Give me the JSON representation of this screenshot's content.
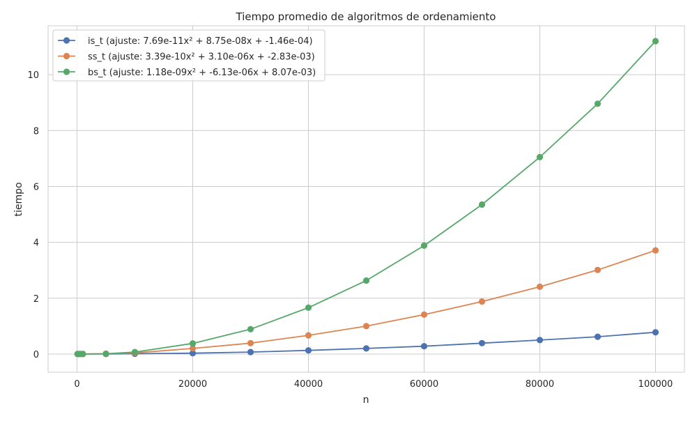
{
  "chart_data": {
    "type": "line",
    "title": "Tiempo promedio de algoritmos de ordenamiento",
    "xlabel": "n",
    "ylabel": "tiempo",
    "xlim": [
      -5000,
      105000
    ],
    "ylim": [
      -0.65,
      11.75
    ],
    "x_ticks": [
      0,
      20000,
      40000,
      60000,
      80000,
      100000
    ],
    "y_ticks": [
      0,
      2,
      4,
      6,
      8,
      10
    ],
    "grid": true,
    "legend_position": "top-left",
    "x": [
      100,
      500,
      1000,
      5000,
      10000,
      20000,
      30000,
      40000,
      50000,
      60000,
      70000,
      80000,
      90000,
      100000
    ],
    "series": [
      {
        "name": "is_t (ajuste: 7.69e-11x² + 8.75e-08x + -1.46e-04)",
        "color": "#4c72b0",
        "values": [
          0.0,
          0.0,
          0.0,
          0.0,
          0.01,
          0.03,
          0.07,
          0.13,
          0.2,
          0.28,
          0.39,
          0.5,
          0.62,
          0.78
        ]
      },
      {
        "name": "ss_t (ajuste: 3.39e-10x² + 3.10e-06x + -2.83e-03)",
        "color": "#dd8452",
        "values": [
          0.0,
          0.0,
          0.0,
          0.01,
          0.04,
          0.2,
          0.39,
          0.67,
          1.0,
          1.41,
          1.88,
          2.41,
          3.01,
          3.71
        ]
      },
      {
        "name": "bs_t (ajuste: 1.18e-09x² + -6.13e-06x + 8.07e-03)",
        "color": "#55a868",
        "values": [
          0.0,
          0.0,
          0.0,
          0.01,
          0.07,
          0.38,
          0.89,
          1.66,
          2.63,
          3.88,
          5.35,
          7.05,
          8.96,
          11.2
        ]
      }
    ]
  }
}
